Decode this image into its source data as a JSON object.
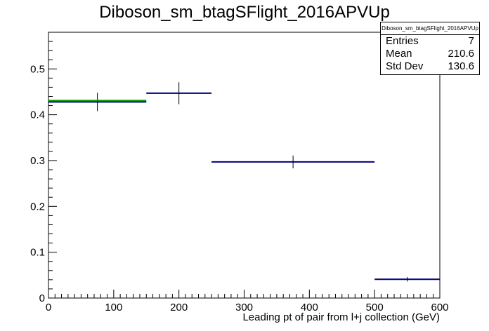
{
  "chart_data": {
    "type": "histogram",
    "title": "Diboson_sm_btagSFlight_2016APVUp",
    "xlabel": "Leading pt of pair from l+j collection (GeV)",
    "ylabel": "",
    "xlim": [
      0,
      600
    ],
    "ylim": [
      0,
      0.58
    ],
    "xticks": [
      "0",
      "100",
      "200",
      "300",
      "400",
      "500",
      "600"
    ],
    "yticks": [
      "0",
      "0.1",
      "0.2",
      "0.3",
      "0.4",
      "0.5"
    ],
    "grid": false,
    "bins": [
      {
        "xlow": 0,
        "xhigh": 150,
        "y": 0.428,
        "err": 0.02
      },
      {
        "xlow": 150,
        "xhigh": 250,
        "y": 0.447,
        "err": 0.024
      },
      {
        "xlow": 250,
        "xhigh": 500,
        "y": 0.297,
        "err": 0.014
      },
      {
        "xlow": 500,
        "xhigh": 600,
        "y": 0.041,
        "err": 0.005
      }
    ],
    "overlay": {
      "xlow": 0,
      "xhigh": 150,
      "y": 0.431,
      "color": "#00a000"
    },
    "line_color": "#000080",
    "stats": {
      "name": "Diboson_sm_btagSFlight_2016APVUp",
      "entries_label": "Entries",
      "entries": "7",
      "mean_label": "Mean",
      "mean": "210.6",
      "stddev_label": "Std Dev",
      "stddev": "130.6"
    }
  }
}
